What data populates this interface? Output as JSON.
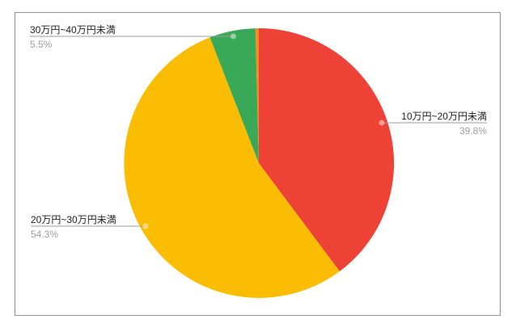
{
  "chart_data": {
    "type": "pie",
    "title": "",
    "unit": "%",
    "start_angle": "12-oclock-clockwise",
    "legend_position": "labeled",
    "slices": [
      {
        "label": "10万円~20万円未満",
        "value": 39.8,
        "pct_label": "39.8%",
        "color": "#EE4236"
      },
      {
        "label": "20万円~30万円未満",
        "value": 54.3,
        "pct_label": "54.3%",
        "color": "#FABD03"
      },
      {
        "label": "30万円~40万円未満",
        "value": 5.5,
        "pct_label": "5.5%",
        "color": "#39A857"
      },
      {
        "label": "",
        "value": 0.4,
        "pct_label": "",
        "color": "#F68C1F"
      }
    ],
    "label_text_color": "#212121",
    "pct_text_color": "#9e9e9e",
    "leader_line_color": "#9e9e9e"
  },
  "frame": {
    "border_color": "#919191",
    "background": "#ffffff"
  }
}
